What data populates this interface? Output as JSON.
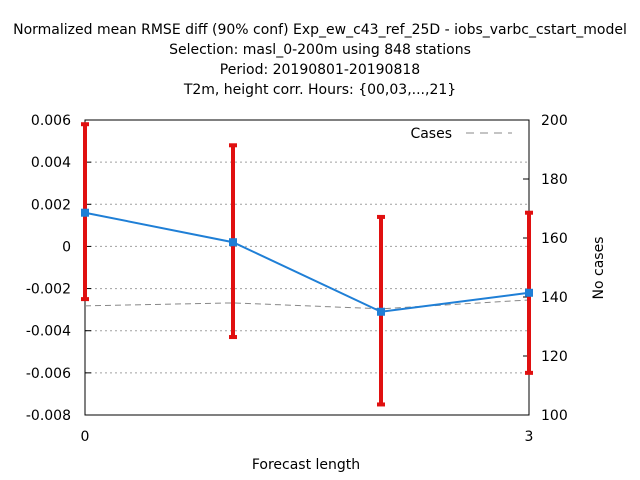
{
  "chart_data": {
    "type": "line",
    "title_lines": [
      "Normalized mean RMSE diff (90% conf) Exp_ew_c43_ref_25D - iobs_varbc_cstart_model",
      "Selection: masl_0-200m using   848 stations",
      "Period: 20190801-20190818",
      "T2m, height corr.   Hours: {00,03,...,21}"
    ],
    "xlabel": "Forecast length",
    "ylabel": "",
    "y2label": "No cases",
    "x_ticks": [
      "0",
      "3"
    ],
    "y_ticks": [
      "0.006",
      "0.004",
      "0.002",
      "0",
      "-0.002",
      "-0.004",
      "-0.006",
      "-0.008"
    ],
    "y2_ticks": [
      "200",
      "180",
      "160",
      "140",
      "120",
      "100"
    ],
    "xlim": [
      0,
      3
    ],
    "ylim": [
      -0.008,
      0.006
    ],
    "y2lim": [
      100,
      200
    ],
    "grid": true,
    "legend": {
      "position": "top-right",
      "entries": [
        "Cases"
      ]
    },
    "series": [
      {
        "name": "",
        "type": "line-errorbar",
        "color": "#1f7fd6",
        "errorbar_color": "#e01010",
        "x": [
          0,
          1,
          2,
          3
        ],
        "y": [
          0.0016,
          0.0002,
          -0.0031,
          -0.0022
        ],
        "y_low": [
          -0.0025,
          -0.0043,
          -0.0075,
          -0.006
        ],
        "y_high": [
          0.0058,
          0.0048,
          0.0014,
          0.0016
        ]
      },
      {
        "name": "Cases",
        "type": "dashed-line",
        "axis": "y2",
        "color": "#888888",
        "x": [
          0,
          1,
          2,
          3
        ],
        "y": [
          137,
          138,
          136,
          139
        ]
      }
    ]
  }
}
